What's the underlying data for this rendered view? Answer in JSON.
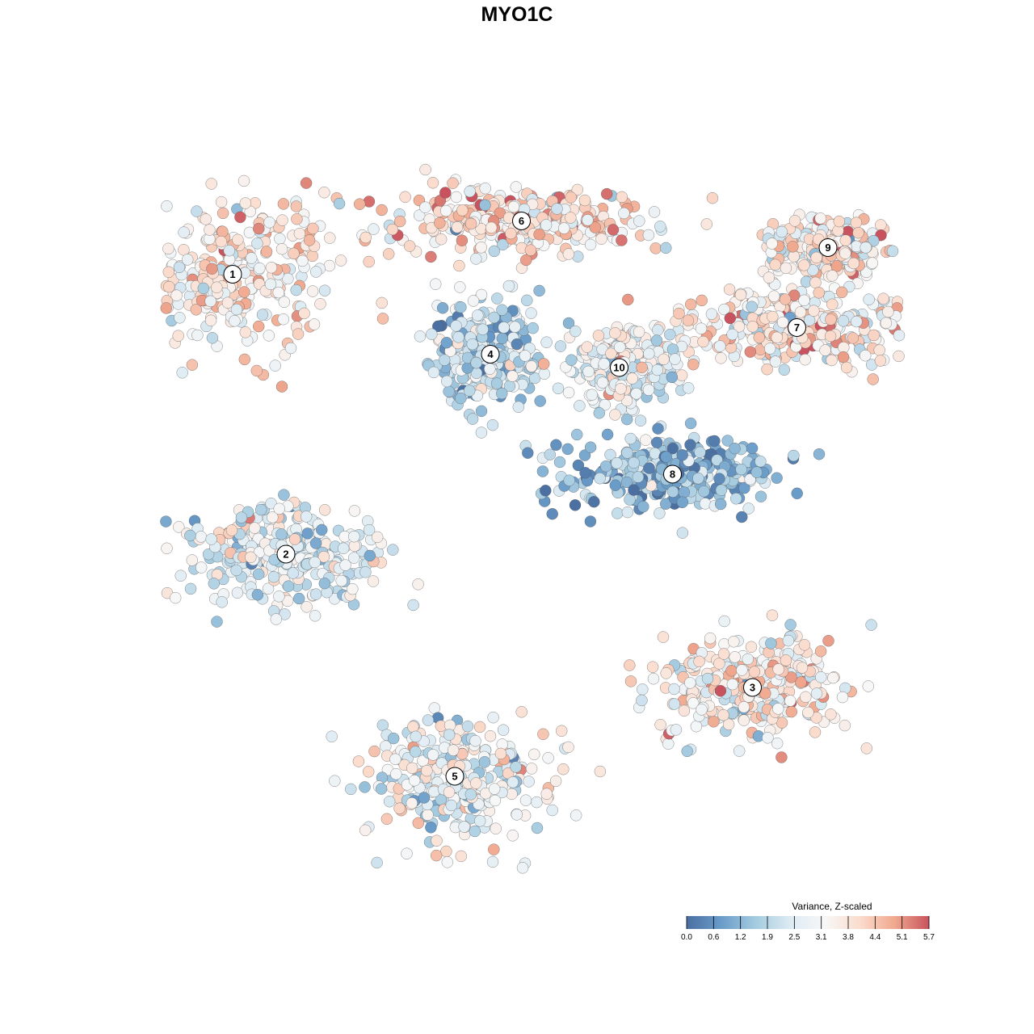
{
  "colors": {
    "scale": [
      "#4a6fa0",
      "#6a9cc9",
      "#a5cbe0",
      "#ddebf3",
      "#f7f7f7",
      "#fbdccd",
      "#f0a98f",
      "#c8535e"
    ],
    "point_stroke": "#555555",
    "label_fill": "#ffffff"
  },
  "chart_data": {
    "type": "scatter",
    "title": "MYO1C",
    "xlabel": "",
    "ylabel": "",
    "grid": false,
    "legend": {
      "title": "Variance, Z-scaled",
      "placement": "bottom-right",
      "min": 0.0,
      "max": 5.7,
      "ticks": [
        "0.0",
        "0.6",
        "1.2",
        "1.9",
        "2.5",
        "3.1",
        "3.8",
        "4.4",
        "5.1",
        "5.7"
      ]
    },
    "clusters": [
      {
        "label": "1",
        "x": -6.4,
        "y": 5.1,
        "spread_x": 2.2,
        "spread_y": 1.6,
        "mean_value": 3.6
      },
      {
        "label": "6",
        "x": 0.1,
        "y": 6.3,
        "spread_x": 2.6,
        "spread_y": 0.7,
        "mean_value": 3.8
      },
      {
        "label": "9",
        "x": 7.0,
        "y": 5.7,
        "spread_x": 1.1,
        "spread_y": 0.6,
        "mean_value": 3.5
      },
      {
        "label": "7",
        "x": 6.3,
        "y": 3.9,
        "spread_x": 2.4,
        "spread_y": 0.8,
        "mean_value": 3.6
      },
      {
        "label": "4",
        "x": -0.6,
        "y": 3.3,
        "spread_x": 1.1,
        "spread_y": 1.0,
        "mean_value": 2.1
      },
      {
        "label": "10",
        "x": 2.3,
        "y": 3.0,
        "spread_x": 1.0,
        "spread_y": 0.7,
        "mean_value": 3.0
      },
      {
        "label": "8",
        "x": 3.5,
        "y": 0.6,
        "spread_x": 2.0,
        "spread_y": 0.7,
        "mean_value": 1.3
      },
      {
        "label": "2",
        "x": -5.2,
        "y": -1.2,
        "spread_x": 2.0,
        "spread_y": 1.0,
        "mean_value": 2.6
      },
      {
        "label": "3",
        "x": 5.3,
        "y": -4.2,
        "spread_x": 2.0,
        "spread_y": 1.0,
        "mean_value": 3.4
      },
      {
        "label": "5",
        "x": -1.4,
        "y": -6.2,
        "spread_x": 1.8,
        "spread_y": 1.2,
        "mean_value": 2.9
      }
    ]
  }
}
